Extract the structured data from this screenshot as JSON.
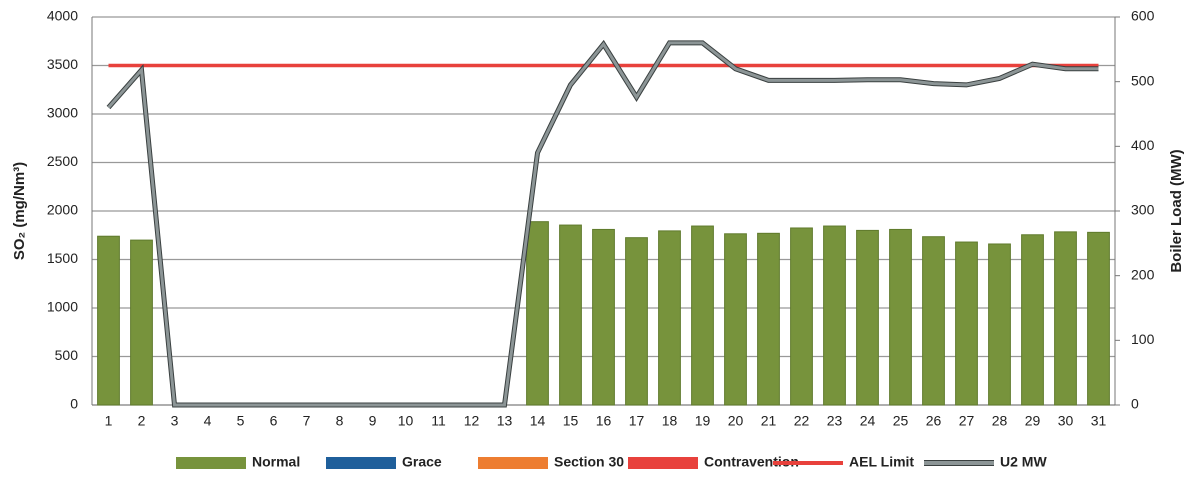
{
  "chart_data": {
    "type": "bar",
    "categories": [
      "1",
      "2",
      "3",
      "4",
      "5",
      "6",
      "7",
      "8",
      "9",
      "10",
      "11",
      "12",
      "13",
      "14",
      "15",
      "16",
      "17",
      "18",
      "19",
      "20",
      "21",
      "22",
      "23",
      "24",
      "25",
      "26",
      "27",
      "28",
      "29",
      "30",
      "31"
    ],
    "series": [
      {
        "name": "Normal",
        "type": "bar",
        "color": "#77933c",
        "values": [
          1740,
          1700,
          0,
          0,
          0,
          0,
          0,
          0,
          0,
          0,
          0,
          0,
          0,
          1890,
          1855,
          1810,
          1725,
          1795,
          1845,
          1765,
          1770,
          1825,
          1845,
          1800,
          1810,
          1735,
          1680,
          1660,
          1755,
          1785,
          1780
        ]
      },
      {
        "name": "Grace",
        "type": "bar",
        "color": "#1f5f9b",
        "values": [
          0,
          0,
          0,
          0,
          0,
          0,
          0,
          0,
          0,
          0,
          0,
          0,
          0,
          0,
          0,
          0,
          0,
          0,
          0,
          0,
          0,
          0,
          0,
          0,
          0,
          0,
          0,
          0,
          0,
          0,
          0
        ]
      },
      {
        "name": "Section 30",
        "type": "bar",
        "color": "#ed7d31",
        "values": [
          0,
          0,
          0,
          0,
          0,
          0,
          0,
          0,
          0,
          0,
          0,
          0,
          0,
          0,
          0,
          0,
          0,
          0,
          0,
          0,
          0,
          0,
          0,
          0,
          0,
          0,
          0,
          0,
          0,
          0,
          0
        ]
      },
      {
        "name": "Contravention",
        "type": "bar",
        "color": "#e8413c",
        "values": [
          0,
          0,
          0,
          0,
          0,
          0,
          0,
          0,
          0,
          0,
          0,
          0,
          0,
          0,
          0,
          0,
          0,
          0,
          0,
          0,
          0,
          0,
          0,
          0,
          0,
          0,
          0,
          0,
          0,
          0,
          0
        ]
      },
      {
        "name": "AEL Limit",
        "type": "line",
        "color": "#e8413c",
        "values": [
          3500,
          3500,
          3500,
          3500,
          3500,
          3500,
          3500,
          3500,
          3500,
          3500,
          3500,
          3500,
          3500,
          3500,
          3500,
          3500,
          3500,
          3500,
          3500,
          3500,
          3500,
          3500,
          3500,
          3500,
          3500,
          3500,
          3500,
          3500,
          3500,
          3500,
          3500
        ]
      },
      {
        "name": "U2 MW",
        "type": "line",
        "axis": "y2",
        "color": "#8c9596",
        "values": [
          460,
          518,
          0,
          0,
          0,
          0,
          0,
          0,
          0,
          0,
          0,
          0,
          0,
          390,
          495,
          558,
          476,
          560,
          560,
          520,
          502,
          502,
          502,
          503,
          503,
          497,
          495,
          505,
          527,
          520,
          520
        ]
      }
    ],
    "ylabel": "SO₂ (mg/Nm³)",
    "y2label": "Boiler Load (MW)",
    "ylim": [
      0,
      4000
    ],
    "yticks": [
      0,
      500,
      1000,
      1500,
      2000,
      2500,
      3000,
      3500,
      4000
    ],
    "y2lim": [
      0,
      600
    ],
    "y2ticks": [
      0,
      100,
      200,
      300,
      400,
      500,
      600
    ],
    "grid": true,
    "legend": "bottom"
  }
}
